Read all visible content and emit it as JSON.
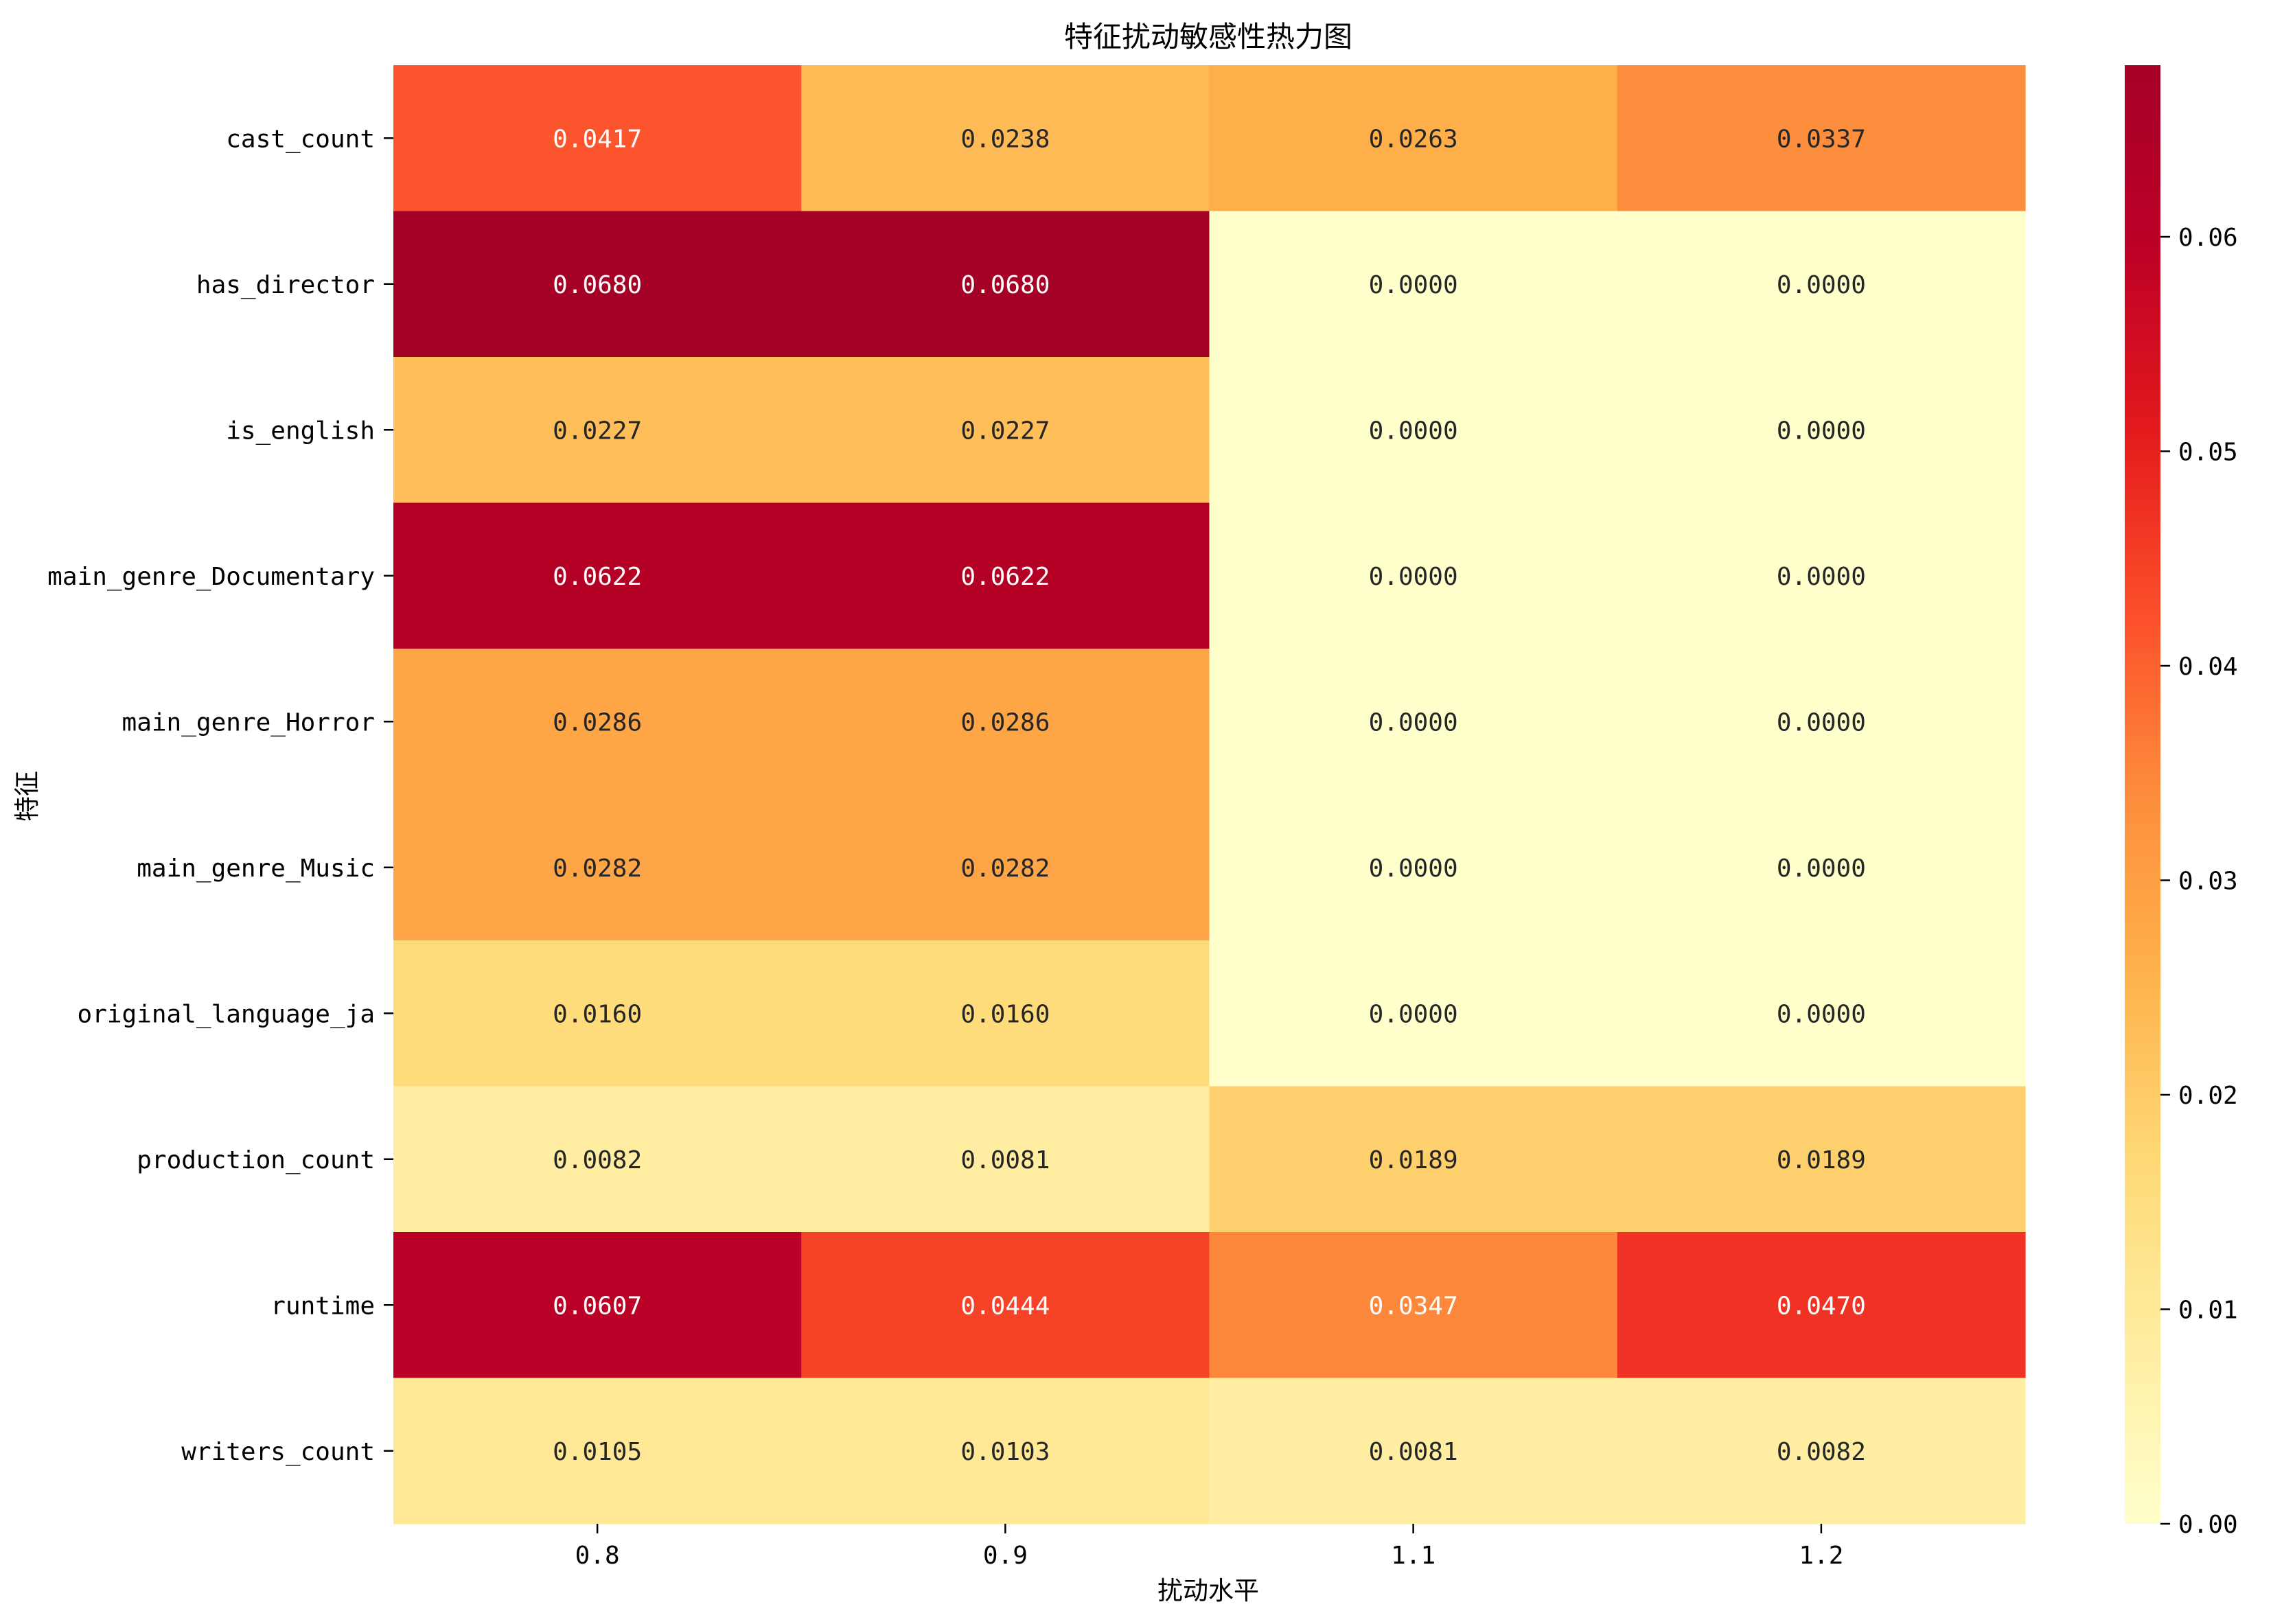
{
  "chart_data": {
    "type": "heatmap",
    "title": "特征扰动敏感性热力图",
    "xlabel": "扰动水平",
    "ylabel": "特征",
    "x_categories": [
      "0.8",
      "0.9",
      "1.1",
      "1.2"
    ],
    "y_categories": [
      "cast_count",
      "has_director",
      "is_english",
      "main_genre_Documentary",
      "main_genre_Horror",
      "main_genre_Music",
      "original_language_ja",
      "production_count",
      "runtime",
      "writers_count"
    ],
    "values": [
      [
        0.0417,
        0.0238,
        0.0263,
        0.0337
      ],
      [
        0.068,
        0.068,
        0.0,
        0.0
      ],
      [
        0.0227,
        0.0227,
        0.0,
        0.0
      ],
      [
        0.0622,
        0.0622,
        0.0,
        0.0
      ],
      [
        0.0286,
        0.0286,
        0.0,
        0.0
      ],
      [
        0.0282,
        0.0282,
        0.0,
        0.0
      ],
      [
        0.016,
        0.016,
        0.0,
        0.0
      ],
      [
        0.0082,
        0.0081,
        0.0189,
        0.0189
      ],
      [
        0.0607,
        0.0444,
        0.0347,
        0.047
      ],
      [
        0.0105,
        0.0103,
        0.0081,
        0.0082
      ]
    ],
    "value_labels": [
      [
        "0.0417",
        "0.0238",
        "0.0263",
        "0.0337"
      ],
      [
        "0.0680",
        "0.0680",
        "0.0000",
        "0.0000"
      ],
      [
        "0.0227",
        "0.0227",
        "0.0000",
        "0.0000"
      ],
      [
        "0.0622",
        "0.0622",
        "0.0000",
        "0.0000"
      ],
      [
        "0.0286",
        "0.0286",
        "0.0000",
        "0.0000"
      ],
      [
        "0.0282",
        "0.0282",
        "0.0000",
        "0.0000"
      ],
      [
        "0.0160",
        "0.0160",
        "0.0000",
        "0.0000"
      ],
      [
        "0.0082",
        "0.0081",
        "0.0189",
        "0.0189"
      ],
      [
        "0.0607",
        "0.0444",
        "0.0347",
        "0.0470"
      ],
      [
        "0.0105",
        "0.0103",
        "0.0081",
        "0.0082"
      ]
    ],
    "colorbar": {
      "range": [
        0,
        0.068
      ],
      "ticks": [
        0,
        0.01,
        0.02,
        0.03,
        0.04,
        0.05,
        0.06
      ],
      "tick_labels": [
        "0.00",
        "0.01",
        "0.02",
        "0.03",
        "0.04",
        "0.05",
        "0.06"
      ],
      "colormap": "YlOrRd",
      "color_stops": [
        "#ffffcc",
        "#ffeda0",
        "#fed976",
        "#feb24c",
        "#fd8d3c",
        "#fc4e2a",
        "#e31a1c",
        "#bd0026",
        "#a50026"
      ]
    },
    "grid": false,
    "legend": "colorbar-right"
  }
}
